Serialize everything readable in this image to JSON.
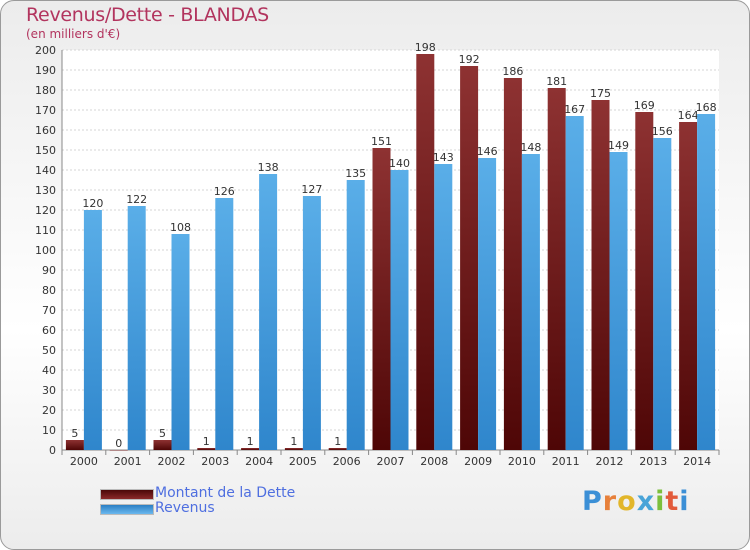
{
  "chart_data": {
    "type": "bar",
    "title": "Revenus/Dette - BLANDAS",
    "subtitle": "(en milliers d'€)",
    "categories": [
      "2000",
      "2001",
      "2002",
      "2003",
      "2004",
      "2005",
      "2006",
      "2007",
      "2008",
      "2009",
      "2010",
      "2011",
      "2012",
      "2013",
      "2014"
    ],
    "series": [
      {
        "name": "Montant de la Dette",
        "color": "#7a1a1a",
        "values": [
          5,
          0,
          5,
          1,
          1,
          1,
          1,
          151,
          198,
          192,
          186,
          181,
          175,
          169,
          164
        ]
      },
      {
        "name": "Revenus",
        "color": "#3a97dc",
        "values": [
          120,
          122,
          108,
          126,
          138,
          127,
          135,
          140,
          143,
          146,
          148,
          167,
          149,
          156,
          168
        ]
      }
    ],
    "y_ticks": [
      0,
      10,
      20,
      30,
      40,
      50,
      60,
      70,
      80,
      90,
      100,
      110,
      120,
      130,
      140,
      150,
      160,
      170,
      180,
      190,
      200
    ],
    "ylim": [
      0,
      200
    ],
    "grid": true,
    "legend": "bottom-left"
  },
  "legend": {
    "items": [
      {
        "label": "Montant de la Dette",
        "color": "#6b1010"
      },
      {
        "label": "Revenus",
        "color": "#3a97dc"
      }
    ]
  },
  "logo": {
    "letters": [
      "P",
      "r",
      "o",
      "x",
      "i",
      "t",
      "i"
    ]
  }
}
